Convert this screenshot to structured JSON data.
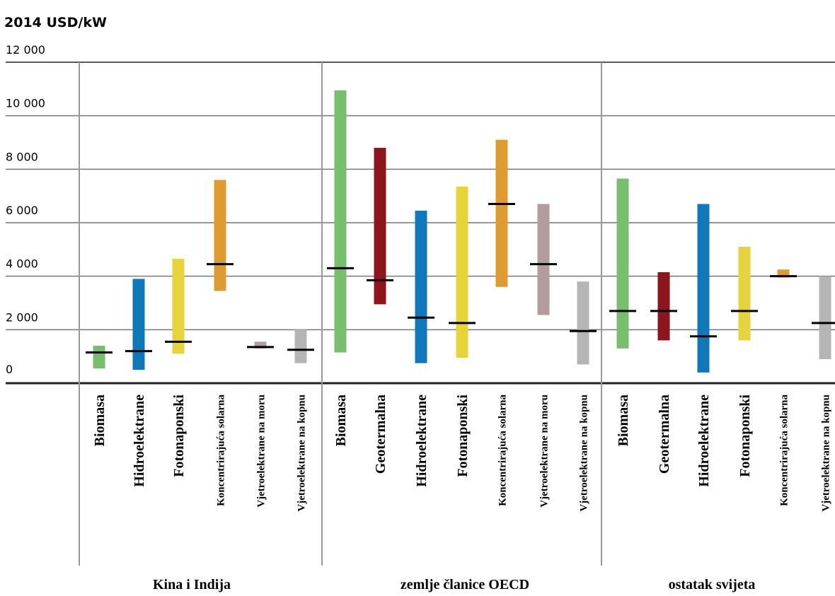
{
  "chart_data": {
    "type": "range-bar",
    "ylabel": "2014 USD/kW",
    "ylim": [
      0,
      12000
    ],
    "yticks": [
      0,
      2000,
      4000,
      6000,
      8000,
      10000,
      12000
    ],
    "ytick_labels": [
      "0",
      "2 000",
      "4 000",
      "6 000",
      "8 000",
      "10 000",
      "12 000"
    ],
    "grid": true,
    "groups": [
      {
        "name": "Kina i Indija",
        "items": [
          {
            "label": "Biomasa",
            "low": 550,
            "high": 1400,
            "avg": 1150,
            "color": "#77bf6e"
          },
          {
            "label": "Hidroelektrane",
            "low": 500,
            "high": 3900,
            "avg": 1200,
            "color": "#1077b8"
          },
          {
            "label": "Fotonaponski",
            "low": 1100,
            "high": 4650,
            "avg": 1550,
            "color": "#e5d43b"
          },
          {
            "label": "Koncentrirajuća solarna",
            "low": 3450,
            "high": 7600,
            "avg": 4450,
            "color": "#e09b30"
          },
          {
            "label": "Vjetroelektrane na moru",
            "low": 1300,
            "high": 1550,
            "avg": 1350,
            "color": "#b29c9f"
          },
          {
            "label": "Vjetroelektrane na kopnu",
            "low": 750,
            "high": 2000,
            "avg": 1250,
            "color": "#b5b5b5"
          }
        ]
      },
      {
        "name": "zemlje članice OECD",
        "items": [
          {
            "label": "Biomasa",
            "low": 1150,
            "high": 10950,
            "avg": 4300,
            "color": "#77bf6e"
          },
          {
            "label": "Geotermalna",
            "low": 2950,
            "high": 8800,
            "avg": 3850,
            "color": "#8c161b"
          },
          {
            "label": "Hidroelektrane",
            "low": 750,
            "high": 6450,
            "avg": 2450,
            "color": "#1077b8"
          },
          {
            "label": "Fotonaponski",
            "low": 950,
            "high": 7350,
            "avg": 2250,
            "color": "#e5d43b"
          },
          {
            "label": "Koncentrirajuća solarna",
            "low": 3600,
            "high": 9100,
            "avg": 6700,
            "color": "#e09b30"
          },
          {
            "label": "Vjetroelektrane na moru",
            "low": 2550,
            "high": 6700,
            "avg": 4450,
            "color": "#b29c9f"
          },
          {
            "label": "Vjetroelektrane na kopnu",
            "low": 700,
            "high": 3800,
            "avg": 1950,
            "color": "#b5b5b5"
          }
        ]
      },
      {
        "name": "ostatak svijeta",
        "items": [
          {
            "label": "Biomasa",
            "low": 1300,
            "high": 7650,
            "avg": 2700,
            "color": "#77bf6e"
          },
          {
            "label": "Geotermalna",
            "low": 1600,
            "high": 4150,
            "avg": 2700,
            "color": "#8c161b"
          },
          {
            "label": "Hidroelektrane",
            "low": 400,
            "high": 6700,
            "avg": 1750,
            "color": "#1077b8"
          },
          {
            "label": "Fotonaponski",
            "low": 1600,
            "high": 5100,
            "avg": 2700,
            "color": "#e5d43b"
          },
          {
            "label": "Koncentrirajuća solarna",
            "low": 3950,
            "high": 4250,
            "avg": 4000,
            "color": "#e09b30"
          },
          {
            "label": "Vjetroelektrane na kopnu",
            "low": 900,
            "high": 4000,
            "avg": 2250,
            "color": "#b5b5b5"
          }
        ]
      }
    ]
  }
}
